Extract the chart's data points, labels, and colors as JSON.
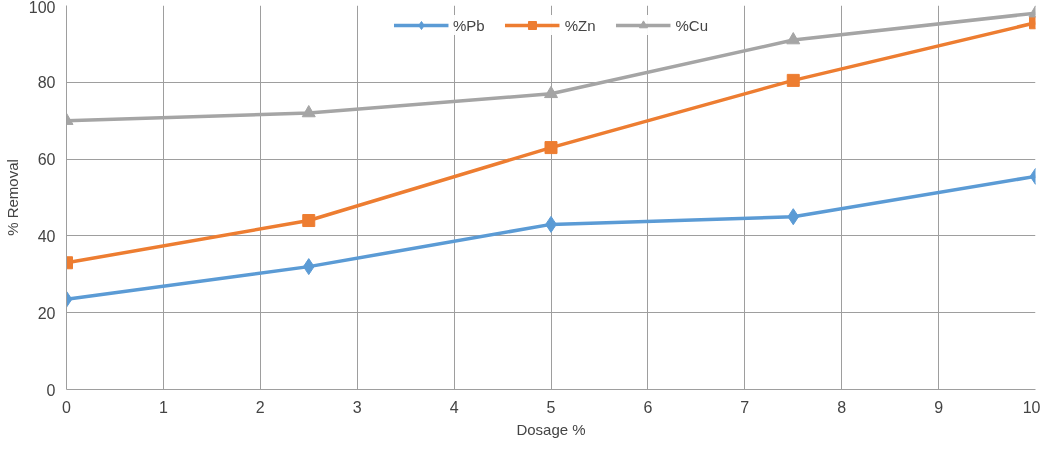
{
  "chart_data": {
    "type": "line",
    "xlabel": "Dosage %",
    "ylabel": "% Removal",
    "x": [
      0,
      2.5,
      5,
      7.5,
      10
    ],
    "series": [
      {
        "name": "%Pb",
        "color": "#5b9bd5",
        "marker": "diamond",
        "values": [
          23.5,
          32,
          43,
          45,
          55.5
        ]
      },
      {
        "name": "%Zn",
        "color": "#ed7d31",
        "marker": "square",
        "values": [
          33,
          44,
          63,
          80.5,
          95.5
        ]
      },
      {
        "name": "%Cu",
        "color": "#a5a5a5",
        "marker": "triangle",
        "values": [
          70,
          72,
          77,
          91,
          98
        ]
      }
    ],
    "xlim": [
      0,
      10
    ],
    "xticks": [
      0,
      1,
      2,
      3,
      4,
      5,
      6,
      7,
      8,
      9,
      10
    ],
    "ylim": [
      0,
      100
    ],
    "yticks": [
      0,
      20,
      40,
      60,
      80,
      100
    ],
    "grid": true,
    "legend": "top",
    "line_style": "solid"
  }
}
